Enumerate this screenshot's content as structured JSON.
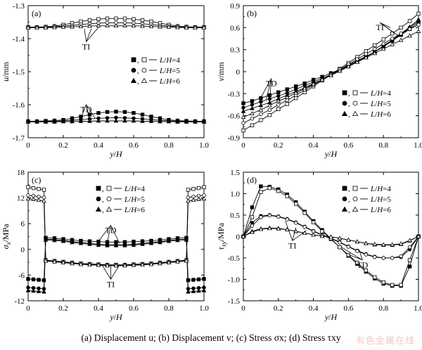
{
  "caption": "(a) Displacement u; (b) Displacement v; (c) Stress σx; (d) Stress τxy",
  "watermark": "有色金属在线",
  "colors": {
    "line": "#000000",
    "axis": "#000000",
    "background": "#ffffff",
    "watermark": "#f2c8c8"
  },
  "chart_data": [
    {
      "id": "a",
      "panel_label": "(a)",
      "type": "line",
      "xlabel": "y/H",
      "ylabel": "u/mm",
      "xlim": [
        0,
        1.0
      ],
      "ylim": [
        -1.7,
        -1.3
      ],
      "xticks": [
        0,
        0.2,
        0.4,
        0.6,
        0.8,
        1.0
      ],
      "xticklabels": [
        "0",
        "0.2",
        "0.4",
        "0.6",
        "0.8",
        "1.0"
      ],
      "yticks": [
        -1.7,
        -1.6,
        -1.5,
        -1.4,
        -1.3
      ],
      "yticklabels": [
        "-1.7",
        "-1.6",
        "-1.5",
        "-1.4",
        "-1.3"
      ],
      "grid": false,
      "legend_position": "right",
      "legend": [
        "■, □ — L/H=4",
        "●, ○ — L/H=5",
        "▲, △ — L/H=6"
      ],
      "annotations": [
        {
          "text": "TI",
          "x": 0.33,
          "y": -1.42,
          "targets": [
            [
              0.32,
              -1.37
            ],
            [
              0.36,
              -1.37
            ],
            [
              0.4,
              -1.366
            ]
          ]
        },
        {
          "text": "TD",
          "x": 0.33,
          "y": -1.61,
          "targets": [
            [
              0.3,
              -1.642
            ],
            [
              0.35,
              -1.648
            ],
            [
              0.38,
              -1.64
            ]
          ]
        }
      ],
      "x": [
        0,
        0.05,
        0.1,
        0.15,
        0.2,
        0.25,
        0.3,
        0.35,
        0.4,
        0.45,
        0.5,
        0.55,
        0.6,
        0.65,
        0.7,
        0.75,
        0.8,
        0.85,
        0.9,
        0.95,
        1.0
      ],
      "series": [
        {
          "marker": "square-filled",
          "values": [
            -1.65,
            -1.65,
            -1.649,
            -1.648,
            -1.646,
            -1.641,
            -1.636,
            -1.63,
            -1.625,
            -1.622,
            -1.621,
            -1.622,
            -1.625,
            -1.63,
            -1.636,
            -1.641,
            -1.646,
            -1.648,
            -1.649,
            -1.65,
            -1.65
          ]
        },
        {
          "marker": "circle-filled",
          "values": [
            -1.651,
            -1.651,
            -1.651,
            -1.65,
            -1.649,
            -1.647,
            -1.645,
            -1.643,
            -1.641,
            -1.64,
            -1.639,
            -1.64,
            -1.641,
            -1.643,
            -1.645,
            -1.647,
            -1.649,
            -1.65,
            -1.651,
            -1.651,
            -1.651
          ]
        },
        {
          "marker": "triangle-filled",
          "values": [
            -1.652,
            -1.652,
            -1.652,
            -1.652,
            -1.651,
            -1.651,
            -1.65,
            -1.65,
            -1.649,
            -1.649,
            -1.649,
            -1.649,
            -1.649,
            -1.65,
            -1.65,
            -1.651,
            -1.651,
            -1.652,
            -1.652,
            -1.652,
            -1.652
          ]
        },
        {
          "marker": "square-open",
          "values": [
            -1.365,
            -1.365,
            -1.364,
            -1.362,
            -1.358,
            -1.353,
            -1.348,
            -1.344,
            -1.341,
            -1.339,
            -1.339,
            -1.339,
            -1.341,
            -1.344,
            -1.348,
            -1.353,
            -1.358,
            -1.362,
            -1.364,
            -1.365,
            -1.365
          ]
        },
        {
          "marker": "circle-open",
          "values": [
            -1.366,
            -1.366,
            -1.365,
            -1.364,
            -1.362,
            -1.36,
            -1.357,
            -1.355,
            -1.353,
            -1.352,
            -1.352,
            -1.352,
            -1.353,
            -1.355,
            -1.357,
            -1.36,
            -1.362,
            -1.364,
            -1.365,
            -1.366,
            -1.366
          ]
        },
        {
          "marker": "triangle-open",
          "values": [
            -1.367,
            -1.367,
            -1.367,
            -1.366,
            -1.365,
            -1.364,
            -1.363,
            -1.362,
            -1.361,
            -1.361,
            -1.361,
            -1.361,
            -1.361,
            -1.362,
            -1.363,
            -1.364,
            -1.365,
            -1.366,
            -1.367,
            -1.367,
            -1.367
          ]
        }
      ]
    },
    {
      "id": "b",
      "panel_label": "(b)",
      "type": "line",
      "xlabel": "y/H",
      "ylabel": "v/mm",
      "xlim": [
        0,
        1.0
      ],
      "ylim": [
        -0.9,
        0.9
      ],
      "xticks": [
        0,
        0.2,
        0.4,
        0.6,
        0.8,
        1.0
      ],
      "xticklabels": [
        "0",
        "0.2",
        "0.4",
        "0.6",
        "0.8",
        "1.0"
      ],
      "yticks": [
        -0.9,
        -0.6,
        -0.3,
        0,
        0.3,
        0.6,
        0.9
      ],
      "yticklabels": [
        "-0.9",
        "-0.6",
        "-0.3",
        "0",
        "0.3",
        "0.6",
        "0.9"
      ],
      "grid": false,
      "legend_position": "bottom-right",
      "legend": [
        "■, □ — L/H=4",
        "●, ○ — L/H=5",
        "▲, △ — L/H=6"
      ],
      "annotations": [
        {
          "text": "TI",
          "x": 0.78,
          "y": 0.62,
          "targets": [
            [
              0.84,
              0.6
            ],
            [
              0.86,
              0.53
            ],
            [
              0.89,
              0.48
            ]
          ]
        },
        {
          "text": "TD",
          "x": 0.16,
          "y": -0.14,
          "targets": [
            [
              0.1,
              -0.35
            ],
            [
              0.13,
              -0.38
            ],
            [
              0.15,
              -0.42
            ]
          ]
        }
      ],
      "x": [
        0,
        0.05,
        0.1,
        0.15,
        0.2,
        0.25,
        0.3,
        0.35,
        0.4,
        0.45,
        0.5,
        0.55,
        0.6,
        0.65,
        0.7,
        0.75,
        0.8,
        0.85,
        0.9,
        0.95,
        1.0
      ],
      "series": [
        {
          "marker": "square-filled",
          "values": [
            -0.43,
            -0.4,
            -0.36,
            -0.32,
            -0.28,
            -0.24,
            -0.2,
            -0.16,
            -0.11,
            -0.07,
            -0.02,
            0.03,
            0.09,
            0.15,
            0.21,
            0.27,
            0.34,
            0.42,
            0.5,
            0.58,
            0.67
          ]
        },
        {
          "marker": "circle-filled",
          "values": [
            -0.49,
            -0.45,
            -0.41,
            -0.37,
            -0.33,
            -0.29,
            -0.24,
            -0.19,
            -0.14,
            -0.09,
            -0.04,
            0.02,
            0.08,
            0.14,
            0.2,
            0.27,
            0.35,
            0.43,
            0.51,
            0.6,
            0.69
          ]
        },
        {
          "marker": "triangle-filled",
          "values": [
            -0.54,
            -0.5,
            -0.46,
            -0.42,
            -0.37,
            -0.32,
            -0.27,
            -0.22,
            -0.16,
            -0.11,
            -0.05,
            0.01,
            0.07,
            0.14,
            0.2,
            0.27,
            0.35,
            0.43,
            0.52,
            0.61,
            0.71
          ]
        },
        {
          "marker": "square-open",
          "values": [
            -0.8,
            -0.73,
            -0.66,
            -0.59,
            -0.51,
            -0.44,
            -0.36,
            -0.28,
            -0.2,
            -0.12,
            -0.04,
            0.04,
            0.12,
            0.2,
            0.28,
            0.36,
            0.44,
            0.52,
            0.6,
            0.69,
            0.79
          ]
        },
        {
          "marker": "circle-open",
          "values": [
            -0.7,
            -0.64,
            -0.58,
            -0.52,
            -0.45,
            -0.39,
            -0.32,
            -0.25,
            -0.18,
            -0.11,
            -0.04,
            0.03,
            0.1,
            0.17,
            0.24,
            0.31,
            0.38,
            0.45,
            0.52,
            0.58,
            0.64
          ]
        },
        {
          "marker": "triangle-open",
          "values": [
            -0.62,
            -0.57,
            -0.52,
            -0.46,
            -0.4,
            -0.35,
            -0.29,
            -0.23,
            -0.17,
            -0.11,
            -0.05,
            0.01,
            0.07,
            0.13,
            0.19,
            0.25,
            0.31,
            0.37,
            0.43,
            0.49,
            0.55
          ]
        }
      ]
    },
    {
      "id": "c",
      "panel_label": "(c)",
      "type": "line",
      "xlabel": "y/H",
      "ylabel": "σx/MPa",
      "xlim": [
        0,
        1.0
      ],
      "ylim": [
        -12,
        18
      ],
      "xticks": [
        0,
        0.2,
        0.4,
        0.6,
        0.8,
        1.0
      ],
      "xticklabels": [
        "0",
        "0.2",
        "0.4",
        "0.6",
        "0.8",
        "1.0"
      ],
      "yticks": [
        -12,
        -6,
        0,
        6,
        12,
        18
      ],
      "yticklabels": [
        "-12",
        "-6",
        "0",
        "6",
        "12",
        "18"
      ],
      "grid": false,
      "legend_position": "top-right",
      "legend": [
        "■, □ — L/H=4",
        "●, ○ — L/H=5",
        "▲, △ — L/H=6"
      ],
      "annotations": [
        {
          "text": "TD",
          "x": 0.47,
          "y": 4.8,
          "targets": [
            [
              0.4,
              1.9
            ],
            [
              0.45,
              1.6
            ],
            [
              0.52,
              1.4
            ]
          ]
        },
        {
          "text": "TI",
          "x": 0.47,
          "y": -7.8,
          "targets": [
            [
              0.42,
              -3.6
            ],
            [
              0.47,
              -3.9
            ],
            [
              0.52,
              -3.6
            ]
          ]
        }
      ],
      "x": [
        0,
        0.03,
        0.06,
        0.09,
        0.1,
        0.15,
        0.2,
        0.25,
        0.3,
        0.35,
        0.4,
        0.45,
        0.5,
        0.55,
        0.6,
        0.65,
        0.7,
        0.75,
        0.8,
        0.85,
        0.9,
        0.91,
        0.94,
        0.97,
        1.0
      ],
      "series": [
        {
          "marker": "square-filled",
          "values": [
            -6.9,
            -7.0,
            -7.1,
            -7.2,
            2.7,
            2.6,
            2.4,
            2.2,
            2.0,
            1.9,
            1.8,
            1.7,
            1.7,
            1.7,
            1.8,
            1.9,
            2.0,
            2.2,
            2.4,
            2.6,
            2.7,
            -7.2,
            -7.1,
            -7.0,
            -6.9
          ]
        },
        {
          "marker": "circle-filled",
          "values": [
            -8.9,
            -9.0,
            -9.1,
            -9.2,
            2.4,
            2.3,
            2.1,
            1.8,
            1.6,
            1.4,
            1.2,
            1.1,
            1.1,
            1.1,
            1.2,
            1.4,
            1.6,
            1.8,
            2.1,
            2.3,
            2.4,
            -9.2,
            -9.1,
            -9.0,
            -8.9
          ]
        },
        {
          "marker": "triangle-filled",
          "values": [
            -9.6,
            -9.7,
            -9.8,
            -9.9,
            2.2,
            2.1,
            1.9,
            1.6,
            1.4,
            1.2,
            1.0,
            0.9,
            0.9,
            0.9,
            1.0,
            1.2,
            1.4,
            1.6,
            1.9,
            2.1,
            2.2,
            -9.9,
            -9.8,
            -9.7,
            -9.6
          ]
        },
        {
          "marker": "square-open",
          "values": [
            14.5,
            14.3,
            14.1,
            13.9,
            -2.5,
            -2.7,
            -2.9,
            -3.1,
            -3.3,
            -3.4,
            -3.5,
            -3.6,
            -3.6,
            -3.6,
            -3.5,
            -3.4,
            -3.3,
            -3.1,
            -2.9,
            -2.7,
            -2.5,
            13.9,
            14.1,
            14.3,
            14.5
          ]
        },
        {
          "marker": "circle-open",
          "values": [
            12.6,
            12.5,
            12.3,
            12.1,
            -2.6,
            -2.8,
            -3.0,
            -3.2,
            -3.4,
            -3.5,
            -3.6,
            -3.7,
            -3.7,
            -3.7,
            -3.6,
            -3.5,
            -3.4,
            -3.2,
            -3.0,
            -2.8,
            -2.6,
            12.1,
            12.3,
            12.5,
            12.6
          ]
        },
        {
          "marker": "triangle-open",
          "values": [
            11.8,
            11.7,
            11.5,
            11.3,
            -2.7,
            -2.9,
            -3.1,
            -3.3,
            -3.5,
            -3.6,
            -3.7,
            -3.8,
            -3.8,
            -3.8,
            -3.7,
            -3.6,
            -3.5,
            -3.3,
            -3.1,
            -2.9,
            -2.7,
            11.3,
            11.5,
            11.7,
            11.8
          ]
        }
      ]
    },
    {
      "id": "d",
      "panel_label": "(d)",
      "type": "line",
      "xlabel": "y/H",
      "ylabel": "τxy/MPa",
      "xlim": [
        0,
        1.0
      ],
      "ylim": [
        -1.5,
        1.5
      ],
      "xticks": [
        0,
        0.2,
        0.4,
        0.6,
        0.8,
        1.0
      ],
      "xticklabels": [
        "0",
        "0.2",
        "0.4",
        "0.6",
        "0.8",
        "1.0"
      ],
      "yticks": [
        -1.5,
        -1.0,
        -0.5,
        0,
        0.5,
        1.0,
        1.5
      ],
      "yticklabels": [
        "-1.5",
        "-1.0",
        "-0.5",
        "0",
        "0.5",
        "1.0",
        "1.5"
      ],
      "grid": false,
      "legend_position": "top-right",
      "legend": [
        "■, □ — L/H=4",
        "●, ○ — L/H=5",
        "▲, △ — L/H=6"
      ],
      "annotations": [
        {
          "text": "TI",
          "x": 0.28,
          "y": -0.18,
          "targets": [
            [
              0.24,
              0.36
            ],
            [
              0.3,
              0.21
            ],
            [
              0.36,
              0.14
            ]
          ]
        },
        {
          "text": "TD",
          "x": 0.68,
          "y": -0.63,
          "targets": [
            [
              0.56,
              -0.25
            ],
            [
              0.6,
              -0.42
            ],
            [
              0.66,
              -0.3
            ]
          ]
        }
      ],
      "x": [
        0,
        0.05,
        0.1,
        0.15,
        0.2,
        0.25,
        0.3,
        0.35,
        0.4,
        0.45,
        0.5,
        0.55,
        0.6,
        0.65,
        0.7,
        0.75,
        0.8,
        0.85,
        0.9,
        0.95,
        1.0
      ],
      "series": [
        {
          "marker": "square-filled",
          "values": [
            0,
            0.68,
            1.17,
            1.16,
            1.1,
            0.98,
            0.8,
            0.58,
            0.36,
            0.15,
            -0.05,
            -0.25,
            -0.45,
            -0.64,
            -0.82,
            -0.98,
            -1.1,
            -1.15,
            -1.15,
            -0.7,
            0
          ]
        },
        {
          "marker": "circle-filled",
          "values": [
            0,
            0.32,
            0.48,
            0.5,
            0.47,
            0.41,
            0.33,
            0.23,
            0.13,
            0.04,
            -0.04,
            -0.13,
            -0.23,
            -0.33,
            -0.41,
            -0.47,
            -0.5,
            -0.5,
            -0.48,
            -0.3,
            0
          ]
        },
        {
          "marker": "triangle-filled",
          "values": [
            0,
            0.12,
            0.18,
            0.2,
            0.19,
            0.16,
            0.12,
            0.08,
            0.04,
            0.01,
            -0.01,
            -0.04,
            -0.08,
            -0.12,
            -0.16,
            -0.19,
            -0.2,
            -0.2,
            -0.18,
            -0.1,
            0
          ]
        },
        {
          "marker": "square-open",
          "values": [
            0,
            0.45,
            1.04,
            1.13,
            1.06,
            0.94,
            0.76,
            0.55,
            0.33,
            0.12,
            -0.06,
            -0.25,
            -0.43,
            -0.61,
            -0.79,
            -0.95,
            -1.07,
            -1.13,
            -1.13,
            -0.55,
            0
          ]
        },
        {
          "marker": "circle-open",
          "values": [
            0,
            0.25,
            0.45,
            0.49,
            0.46,
            0.4,
            0.32,
            0.22,
            0.12,
            0.03,
            -0.05,
            -0.14,
            -0.24,
            -0.34,
            -0.42,
            -0.48,
            -0.5,
            -0.5,
            -0.46,
            -0.25,
            0
          ]
        },
        {
          "marker": "triangle-open",
          "values": [
            0,
            0.1,
            0.17,
            0.19,
            0.18,
            0.16,
            0.12,
            0.08,
            0.04,
            0.01,
            -0.01,
            -0.04,
            -0.08,
            -0.12,
            -0.16,
            -0.18,
            -0.19,
            -0.19,
            -0.17,
            -0.09,
            0
          ]
        }
      ]
    }
  ]
}
